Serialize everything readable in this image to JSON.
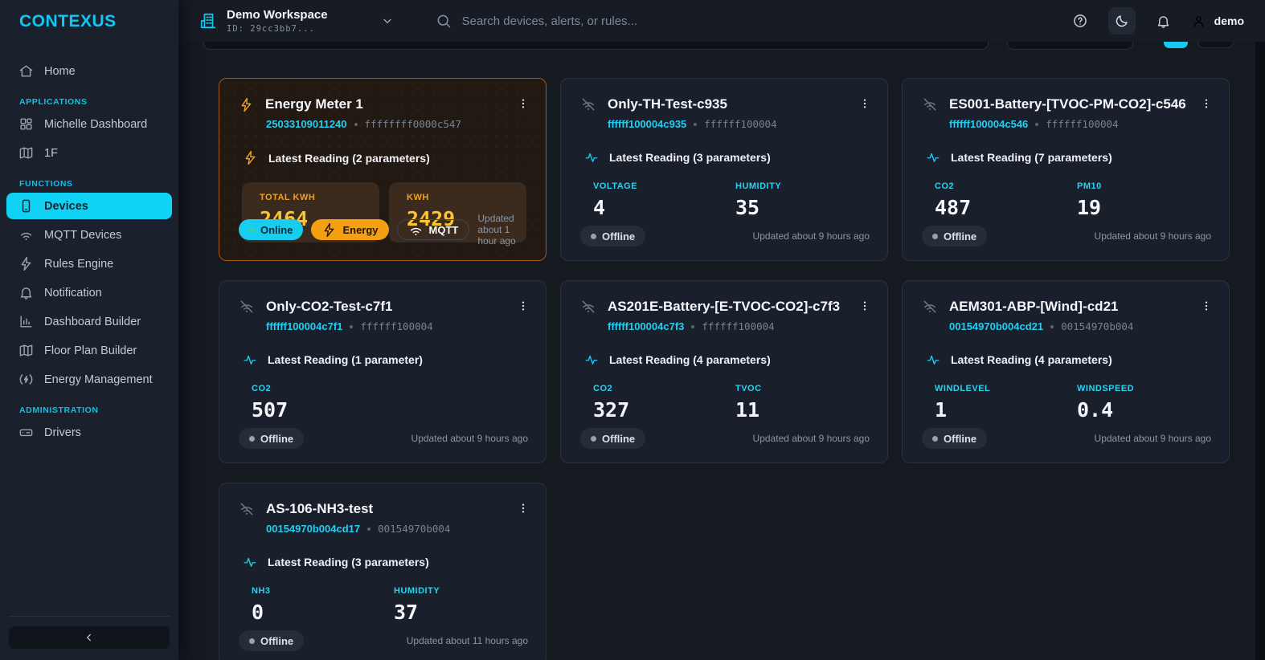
{
  "brand": {
    "logo_text": "CONTEXUS"
  },
  "colors": {
    "accent_cyan": "#18cdf0",
    "accent_amber": "#f5a012",
    "energy_border": "#a65a14",
    "sidebar_bg": "#1b212c",
    "card_bg": "#1a202b"
  },
  "sidebar": {
    "sections": [
      {
        "header": "",
        "items": [
          {
            "label": "Home",
            "icon": "home",
            "active": false
          }
        ]
      },
      {
        "header": "APPLICATIONS",
        "items": [
          {
            "label": "Michelle Dashboard",
            "icon": "dashboard",
            "active": false
          },
          {
            "label": "1F",
            "icon": "map",
            "active": false
          }
        ]
      },
      {
        "header": "FUNCTIONS",
        "items": [
          {
            "label": "Devices",
            "icon": "device",
            "active": true
          },
          {
            "label": "MQTT Devices",
            "icon": "wifi",
            "active": false
          },
          {
            "label": "Rules Engine",
            "icon": "bolt",
            "active": false
          },
          {
            "label": "Notification",
            "icon": "bell",
            "active": false
          },
          {
            "label": "Dashboard Builder",
            "icon": "chart",
            "active": false
          },
          {
            "label": "Floor Plan Builder",
            "icon": "map",
            "active": false
          },
          {
            "label": "Energy Management",
            "icon": "energy",
            "active": false
          }
        ]
      },
      {
        "header": "ADMINISTRATION",
        "items": [
          {
            "label": "Drivers",
            "icon": "drive",
            "active": false
          }
        ]
      }
    ]
  },
  "topbar": {
    "workspace_name": "Demo Workspace",
    "workspace_id": "ID: 29cc3bb7...",
    "search_placeholder": "Search devices, alerts, or rules...",
    "user_name": "demo"
  },
  "cards": [
    {
      "style": "energy",
      "icon": "bolt",
      "reading_icon": "bolt",
      "name": "Energy Meter 1",
      "device_id": "25033109011240",
      "gateway_id": "ffffffff0000c547",
      "reading": "Latest Reading (2 parameters)",
      "params": [
        {
          "label": "TOTAL KWH",
          "value": "2464"
        },
        {
          "label": "KWH",
          "value": "2429"
        }
      ],
      "badges": [
        {
          "label": "Online",
          "type": "online"
        },
        {
          "label": "Energy",
          "type": "energy"
        },
        {
          "label": "MQTT",
          "type": "mqtt"
        }
      ],
      "updated": "Updated about 1 hour ago"
    },
    {
      "style": "default",
      "icon": "wifi-off",
      "reading_icon": "pulse",
      "name": "Only-TH-Test-c935",
      "device_id": "ffffff100004c935",
      "gateway_id": "ffffff100004",
      "reading": "Latest Reading (3 parameters)",
      "params": [
        {
          "label": "VOLTAGE",
          "value": "4"
        },
        {
          "label": "HUMIDITY",
          "value": "35"
        }
      ],
      "badges": [
        {
          "label": "Offline",
          "type": "offline"
        }
      ],
      "updated": "Updated about 9 hours ago"
    },
    {
      "style": "default",
      "icon": "wifi-off",
      "reading_icon": "pulse",
      "name": "ES001-Battery-[TVOC-PM-CO2]-c546",
      "device_id": "ffffff100004c546",
      "gateway_id": "ffffff100004",
      "reading": "Latest Reading (7 parameters)",
      "params": [
        {
          "label": "CO2",
          "value": "487"
        },
        {
          "label": "PM10",
          "value": "19"
        }
      ],
      "badges": [
        {
          "label": "Offline",
          "type": "offline"
        }
      ],
      "updated": "Updated about 9 hours ago"
    },
    {
      "style": "default",
      "icon": "wifi-off",
      "reading_icon": "pulse",
      "name": "Only-CO2-Test-c7f1",
      "device_id": "ffffff100004c7f1",
      "gateway_id": "ffffff100004",
      "reading": "Latest Reading (1 parameter)",
      "params": [
        {
          "label": "CO2",
          "value": "507"
        }
      ],
      "badges": [
        {
          "label": "Offline",
          "type": "offline"
        }
      ],
      "updated": "Updated about 9 hours ago"
    },
    {
      "style": "default",
      "icon": "wifi-off",
      "reading_icon": "pulse",
      "name": "AS201E-Battery-[E-TVOC-CO2]-c7f3",
      "device_id": "ffffff100004c7f3",
      "gateway_id": "ffffff100004",
      "reading": "Latest Reading (4 parameters)",
      "params": [
        {
          "label": "CO2",
          "value": "327"
        },
        {
          "label": "TVOC",
          "value": "11"
        }
      ],
      "badges": [
        {
          "label": "Offline",
          "type": "offline"
        }
      ],
      "updated": "Updated about 9 hours ago"
    },
    {
      "style": "default",
      "icon": "wifi-off",
      "reading_icon": "pulse",
      "name": "AEM301-ABP-[Wind]-cd21",
      "device_id": "00154970b004cd21",
      "gateway_id": "00154970b004",
      "reading": "Latest Reading (4 parameters)",
      "params": [
        {
          "label": "WINDLEVEL",
          "value": "1"
        },
        {
          "label": "WINDSPEED",
          "value": "0.4"
        }
      ],
      "badges": [
        {
          "label": "Offline",
          "type": "offline"
        }
      ],
      "updated": "Updated about 9 hours ago"
    },
    {
      "style": "default",
      "icon": "wifi-off",
      "reading_icon": "pulse",
      "name": "AS-106-NH3-test",
      "device_id": "00154970b004cd17",
      "gateway_id": "00154970b004",
      "reading": "Latest Reading (3 parameters)",
      "params": [
        {
          "label": "NH3",
          "value": "0"
        },
        {
          "label": "HUMIDITY",
          "value": "37"
        }
      ],
      "badges": [
        {
          "label": "Offline",
          "type": "offline"
        }
      ],
      "updated": "Updated about 11 hours ago"
    }
  ]
}
